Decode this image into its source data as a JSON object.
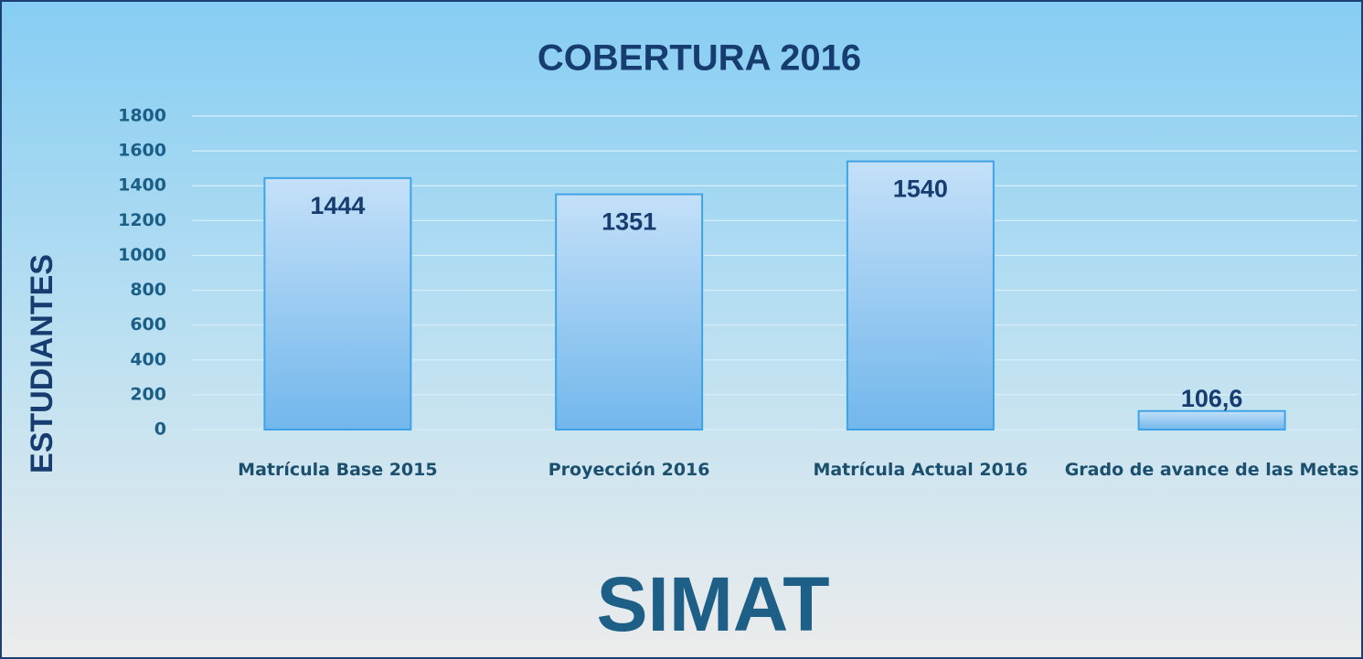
{
  "chart_data": {
    "type": "bar",
    "title": "COBERTURA 2016",
    "y_label": "ESTUDIANTES",
    "footer": "SIMAT",
    "categories": [
      "Matrícula Base 2015",
      "Proyección 2016",
      "Matrícula Actual 2016",
      "Grado de avance de las Metas"
    ],
    "values": [
      1444,
      1351,
      1540,
      106.6
    ],
    "value_labels": [
      "1444",
      "1351",
      "1540",
      "106,6"
    ],
    "color": "#7dbdee",
    "ylim": [
      0,
      1800
    ],
    "yticks": [
      0,
      200,
      400,
      600,
      800,
      1000,
      1200,
      1400,
      1600,
      1800
    ],
    "grid": true
  }
}
